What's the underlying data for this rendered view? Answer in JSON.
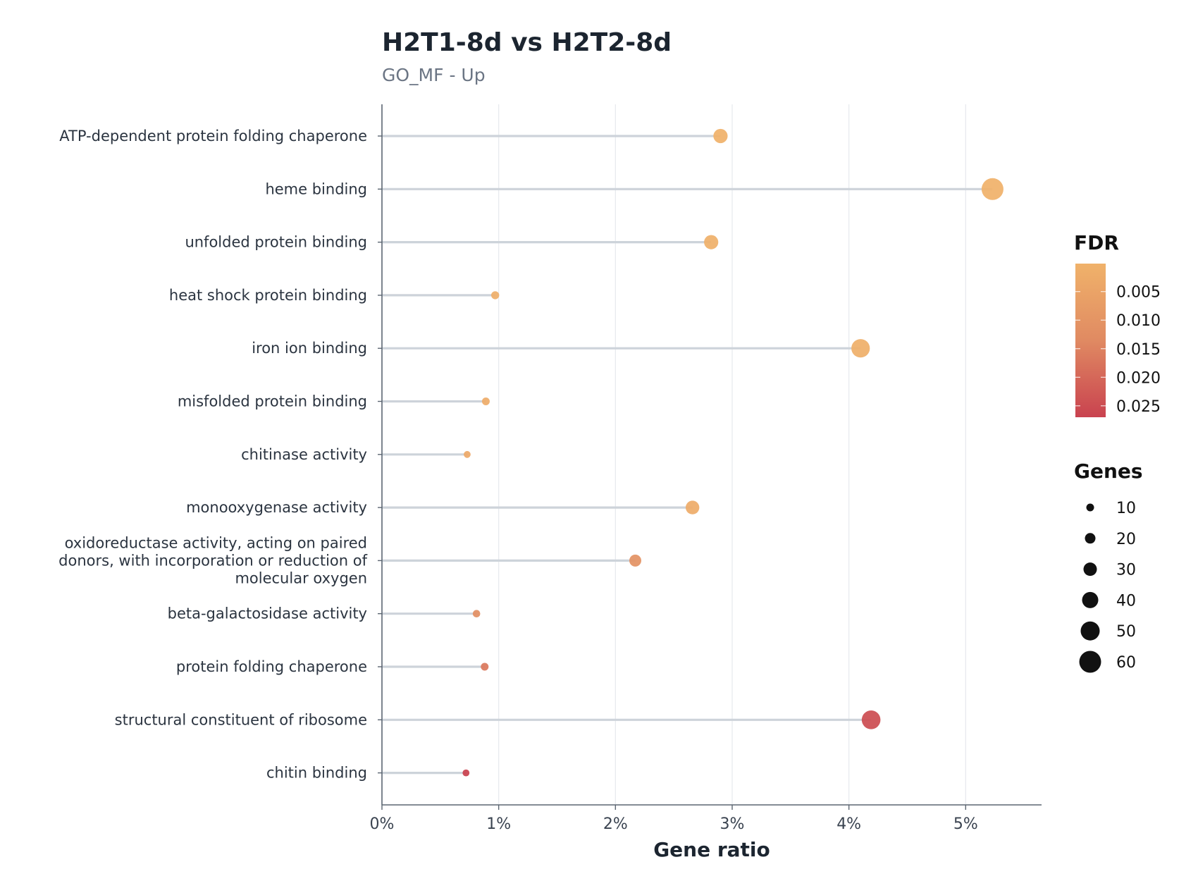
{
  "chart_data": {
    "type": "lollipop",
    "title": "H2T1-8d vs H2T2-8d",
    "subtitle": "GO_MF - Up",
    "xlabel": "Gene ratio",
    "ylabel": "",
    "xlim": [
      0,
      5.65
    ],
    "xticks": [
      0,
      1,
      2,
      3,
      4,
      5
    ],
    "xtick_labels": [
      "0%",
      "1%",
      "2%",
      "3%",
      "4%",
      "5%"
    ],
    "grid": "vertical",
    "legend_position": "right",
    "fdr_legend": {
      "title": "FDR",
      "ticks": [
        0.005,
        0.01,
        0.015,
        0.02,
        0.025
      ],
      "tick_labels": [
        "0.005",
        "0.010",
        "0.015",
        "0.020",
        "0.025"
      ],
      "range": [
        0.0001,
        0.027
      ],
      "color_low": "#f0b26a",
      "color_mid": "#e08a62",
      "color_high": "#c9424f"
    },
    "size_legend": {
      "title": "Genes",
      "values": [
        10,
        20,
        30,
        40,
        50,
        60
      ],
      "labels": [
        "10",
        "20",
        "30",
        "40",
        "50",
        "60"
      ]
    },
    "series": [
      {
        "term": "ATP-dependent protein folding chaperone",
        "ratio": 2.9,
        "genes": 33,
        "fdr": 0.0005
      },
      {
        "term": "heme binding",
        "ratio": 5.23,
        "genes": 60,
        "fdr": 0.0005
      },
      {
        "term": "unfolded protein binding",
        "ratio": 2.82,
        "genes": 33,
        "fdr": 0.0008
      },
      {
        "term": "heat shock protein binding",
        "ratio": 0.97,
        "genes": 11,
        "fdr": 0.0015
      },
      {
        "term": "iron ion binding",
        "ratio": 4.1,
        "genes": 48,
        "fdr": 0.0012
      },
      {
        "term": "misfolded protein binding",
        "ratio": 0.89,
        "genes": 10,
        "fdr": 0.002
      },
      {
        "term": "chitinase activity",
        "ratio": 0.73,
        "genes": 7,
        "fdr": 0.003
      },
      {
        "term": "monooxygenase activity",
        "ratio": 2.66,
        "genes": 31,
        "fdr": 0.002
      },
      {
        "term": "oxidoreductase activity, acting on paired donors, with incorporation or reduction of molecular oxygen",
        "term_lines": [
          "oxidoreductase activity, acting on paired",
          "donors, with incorporation or reduction of",
          "molecular oxygen"
        ],
        "ratio": 2.17,
        "genes": 25,
        "fdr": 0.011
      },
      {
        "term": "beta-galactosidase activity",
        "ratio": 0.81,
        "genes": 9,
        "fdr": 0.012
      },
      {
        "term": "protein folding chaperone",
        "ratio": 0.88,
        "genes": 10,
        "fdr": 0.017
      },
      {
        "term": "structural constituent of ribosome",
        "ratio": 4.19,
        "genes": 49,
        "fdr": 0.025
      },
      {
        "term": "chitin binding",
        "ratio": 0.72,
        "genes": 7,
        "fdr": 0.027
      }
    ]
  }
}
